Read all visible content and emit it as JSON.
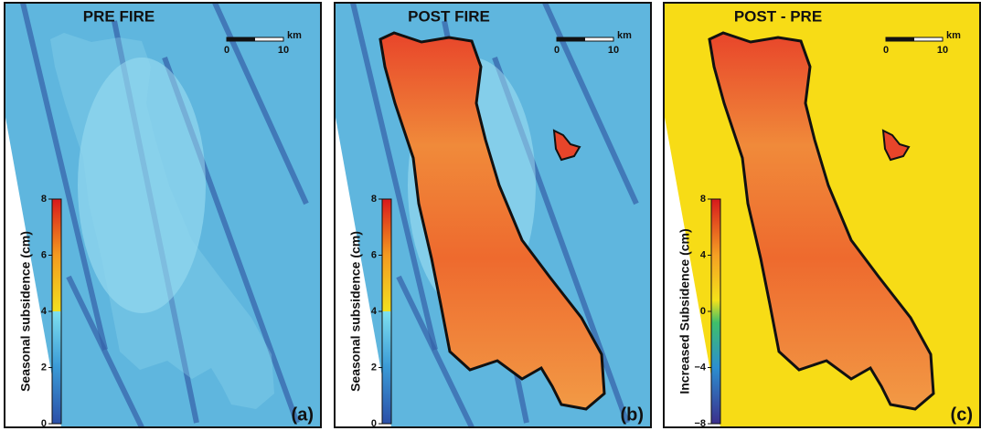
{
  "panels": [
    {
      "title": "PRE FIRE",
      "scale_bar": {
        "unit": "km",
        "ticks": [
          "0",
          "10"
        ]
      },
      "colorbar": {
        "label": "Seasonal subsidence (cm)",
        "ticks": [
          "0",
          "2",
          "4",
          "6",
          "8"
        ]
      },
      "letter": "(a)"
    },
    {
      "title": "POST FIRE",
      "scale_bar": {
        "unit": "km",
        "ticks": [
          "0",
          "10"
        ]
      },
      "colorbar": {
        "label": "Seasonal subsidence (cm)",
        "ticks": [
          "0",
          "2",
          "4",
          "6",
          "8"
        ]
      },
      "letter": "(b)"
    },
    {
      "title": "POST - PRE",
      "scale_bar": {
        "unit": "km",
        "ticks": [
          "0",
          "10"
        ]
      },
      "colorbar": {
        "label": "Increased Subsidence (cm)",
        "ticks": [
          "−8",
          "−4",
          "0",
          "4",
          "8"
        ]
      },
      "letter": "(c)"
    }
  ]
}
